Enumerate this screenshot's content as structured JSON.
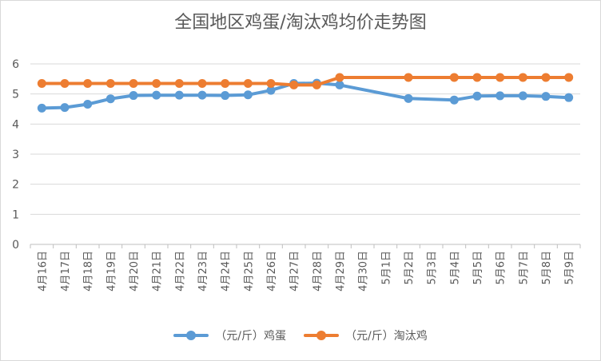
{
  "chart_data": {
    "type": "line",
    "title": "全国地区鸡蛋/淘汰鸡均价走势图",
    "categories": [
      "4月16日",
      "4月17日",
      "4月18日",
      "4月19日",
      "4月20日",
      "4月21日",
      "4月22日",
      "4月23日",
      "4月24日",
      "4月25日",
      "4月26日",
      "4月27日",
      "4月28日",
      "4月29日",
      "4月30日",
      "5月1日",
      "5月2日",
      "5月3日",
      "5月4日",
      "5月5日",
      "5月6日",
      "5月7日",
      "5月8日",
      "5月9日"
    ],
    "series": [
      {
        "name": "（元/斤）鸡蛋",
        "color": "#5b9bd5",
        "values": [
          4.53,
          4.55,
          4.66,
          4.84,
          4.95,
          4.96,
          4.96,
          4.96,
          4.95,
          4.97,
          5.12,
          5.35,
          5.36,
          5.3,
          null,
          null,
          4.85,
          null,
          4.8,
          4.93,
          4.94,
          4.94,
          4.92,
          4.88
        ]
      },
      {
        "name": "（元/斤）淘汰鸡",
        "color": "#ed7d31",
        "values": [
          5.35,
          5.35,
          5.35,
          5.35,
          5.35,
          5.35,
          5.35,
          5.35,
          5.35,
          5.35,
          5.35,
          5.3,
          5.3,
          5.55,
          null,
          null,
          5.55,
          null,
          5.55,
          5.55,
          5.55,
          5.55,
          5.55,
          5.55
        ]
      }
    ],
    "ylim": [
      0,
      6
    ],
    "yticks": [
      0,
      1,
      2,
      3,
      4,
      5,
      6
    ],
    "grid": true,
    "legend": "bottom",
    "xlabel": "",
    "ylabel": ""
  }
}
